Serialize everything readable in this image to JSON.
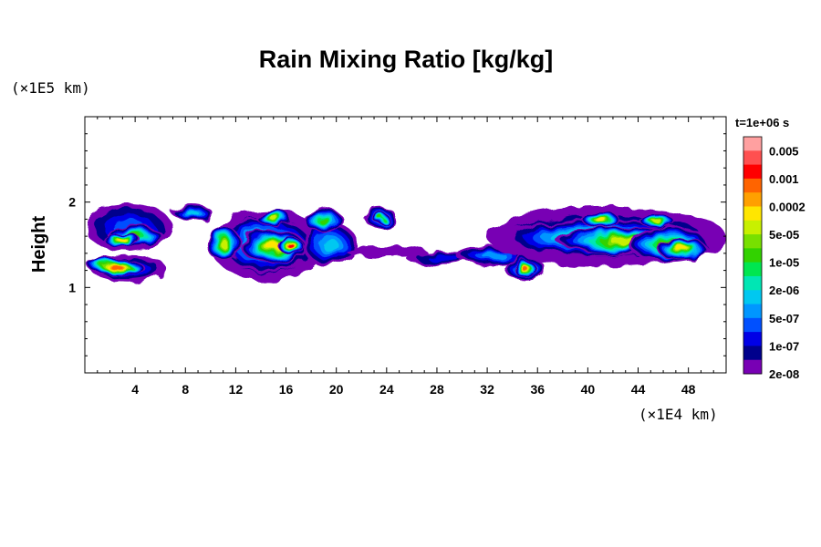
{
  "chart_data": {
    "type": "heatmap",
    "title": "Rain Mixing Ratio [kg/kg]",
    "ylabel": "Height",
    "xlabel": "",
    "x_scale_label": "(×1E4 km)",
    "y_scale_label": "(×1E5 km)",
    "time_label": "t=1e+06 s",
    "xlim": [
      0,
      51
    ],
    "ylim": [
      0,
      3
    ],
    "x_ticks": [
      4,
      8,
      12,
      16,
      20,
      24,
      28,
      32,
      36,
      40,
      44,
      48
    ],
    "y_ticks": [
      1,
      2
    ],
    "x_minor_step": 1,
    "y_minor_step": 0.2,
    "colorbar": {
      "labels": [
        "0.005",
        "0.001",
        "0.0002",
        "5e-05",
        "1e-05",
        "2e-06",
        "5e-07",
        "1e-07",
        "2e-08"
      ],
      "colors": [
        "#ffa0a0",
        "#ff5050",
        "#ff0000",
        "#ff6400",
        "#ffa000",
        "#ffe600",
        "#c8f000",
        "#78e000",
        "#32d200",
        "#00e650",
        "#00e6b4",
        "#00c8f0",
        "#0096ff",
        "#0050ff",
        "#0000e6",
        "#00008c",
        "#7800b4"
      ]
    },
    "blobs": [
      {
        "x": 3.5,
        "y": 1.22,
        "rx": 3.0,
        "ry": 0.16,
        "level": 13
      },
      {
        "x": 2.5,
        "y": 1.24,
        "rx": 2.2,
        "ry": 0.1,
        "level": 3
      },
      {
        "x": 3.5,
        "y": 1.7,
        "rx": 3.5,
        "ry": 0.28,
        "level": 13
      },
      {
        "x": 4.0,
        "y": 1.6,
        "rx": 2.2,
        "ry": 0.14,
        "level": 8
      },
      {
        "x": 3.0,
        "y": 1.55,
        "rx": 1.5,
        "ry": 0.08,
        "level": 5
      },
      {
        "x": 8.5,
        "y": 1.88,
        "rx": 1.6,
        "ry": 0.1,
        "level": 11
      },
      {
        "x": 14.5,
        "y": 1.5,
        "rx": 4.5,
        "ry": 0.42,
        "level": 13
      },
      {
        "x": 14.5,
        "y": 1.5,
        "rx": 3.8,
        "ry": 0.32,
        "level": 9
      },
      {
        "x": 15.0,
        "y": 1.48,
        "rx": 2.6,
        "ry": 0.2,
        "level": 5
      },
      {
        "x": 16.3,
        "y": 1.5,
        "rx": 1.0,
        "ry": 0.1,
        "level": 2
      },
      {
        "x": 11.0,
        "y": 1.52,
        "rx": 1.4,
        "ry": 0.2,
        "level": 6
      },
      {
        "x": 15.0,
        "y": 1.82,
        "rx": 1.4,
        "ry": 0.1,
        "level": 6
      },
      {
        "x": 19.5,
        "y": 1.5,
        "rx": 2.2,
        "ry": 0.26,
        "level": 11
      },
      {
        "x": 19.0,
        "y": 1.78,
        "rx": 1.6,
        "ry": 0.14,
        "level": 8
      },
      {
        "x": 23.5,
        "y": 1.82,
        "rx": 1.3,
        "ry": 0.12,
        "level": 11
      },
      {
        "x": 23.5,
        "y": 1.82,
        "rx": 0.7,
        "ry": 0.06,
        "level": 8
      },
      {
        "x": 24.0,
        "y": 1.42,
        "rx": 3.2,
        "ry": 0.06,
        "level": 16
      },
      {
        "x": 28.5,
        "y": 1.35,
        "rx": 3.0,
        "ry": 0.07,
        "level": 14
      },
      {
        "x": 32.5,
        "y": 1.38,
        "rx": 3.0,
        "ry": 0.12,
        "level": 12
      },
      {
        "x": 41.5,
        "y": 1.6,
        "rx": 9.5,
        "ry": 0.35,
        "level": 13
      },
      {
        "x": 41.5,
        "y": 1.6,
        "rx": 8.8,
        "ry": 0.28,
        "level": 11
      },
      {
        "x": 41.0,
        "y": 1.58,
        "rx": 7.5,
        "ry": 0.22,
        "level": 8
      },
      {
        "x": 43.0,
        "y": 1.55,
        "rx": 5.5,
        "ry": 0.16,
        "level": 6
      },
      {
        "x": 35.0,
        "y": 1.22,
        "rx": 1.6,
        "ry": 0.14,
        "level": 10
      },
      {
        "x": 35.0,
        "y": 1.22,
        "rx": 0.9,
        "ry": 0.1,
        "level": 3
      },
      {
        "x": 46.5,
        "y": 1.5,
        "rx": 3.2,
        "ry": 0.2,
        "level": 7
      },
      {
        "x": 47.5,
        "y": 1.45,
        "rx": 2.0,
        "ry": 0.12,
        "level": 5
      },
      {
        "x": 41.0,
        "y": 1.8,
        "rx": 1.5,
        "ry": 0.1,
        "level": 5
      },
      {
        "x": 45.5,
        "y": 1.78,
        "rx": 1.4,
        "ry": 0.08,
        "level": 6
      }
    ]
  }
}
